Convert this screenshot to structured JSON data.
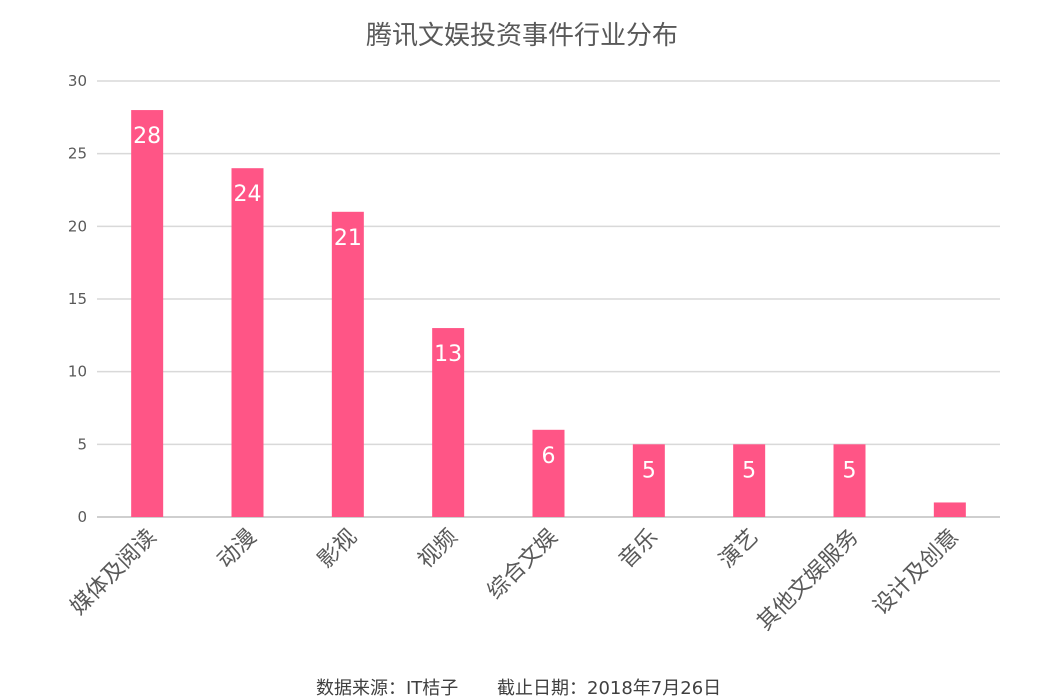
{
  "colors": {
    "bar": "#FF5586",
    "grid": "#d9d9d9",
    "text": "#595959"
  },
  "chart_data": {
    "type": "bar",
    "title": "腾讯文娱投资事件行业分布",
    "categories": [
      "媒体及阅读",
      "动漫",
      "影视",
      "视频",
      "综合文娱",
      "音乐",
      "演艺",
      "其他文娱服务",
      "设计及创意"
    ],
    "values": [
      28,
      24,
      21,
      13,
      6,
      5,
      5,
      5,
      1
    ],
    "data_labels": [
      "28",
      "24",
      "21",
      "13",
      "6",
      "5",
      "5",
      "5",
      ""
    ],
    "ylim": [
      0,
      30
    ],
    "yticks": [
      0,
      5,
      10,
      15,
      20,
      25,
      30
    ],
    "xlabel": "",
    "ylabel": "",
    "grid": true,
    "legend": "none"
  },
  "footer": {
    "source": "数据来源：IT桔子",
    "date": "截止日期：2018年7月26日"
  }
}
